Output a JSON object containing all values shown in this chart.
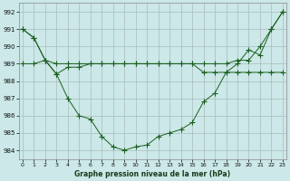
{
  "title": "Graphe pression niveau de la mer (hPa)",
  "background_color": "#cce8e8",
  "grid_color": "#aabbbb",
  "line_color": "#1a6020",
  "ylim": [
    983.5,
    992.5
  ],
  "yticks": [
    984,
    985,
    986,
    987,
    988,
    989,
    990,
    991,
    992
  ],
  "xlim": [
    -0.3,
    23.3
  ],
  "xticks": [
    0,
    1,
    2,
    3,
    4,
    5,
    6,
    7,
    8,
    9,
    10,
    11,
    12,
    13,
    14,
    15,
    16,
    17,
    18,
    19,
    20,
    21,
    22,
    23
  ],
  "s1_y": [
    991.0,
    990.5,
    989.2,
    989.0,
    989.0,
    989.0,
    989.0,
    989.0,
    989.0,
    989.0,
    989.0,
    989.0,
    989.0,
    989.0,
    989.0,
    989.0,
    989.0,
    989.0,
    989.0,
    989.2,
    989.2,
    990.0,
    991.0,
    992.0
  ],
  "s2_y": [
    991.0,
    990.5,
    989.2,
    988.4,
    987.0,
    986.0,
    985.8,
    984.8,
    984.2,
    984.0,
    984.2,
    984.3,
    984.8,
    985.0,
    985.2,
    985.6,
    986.8,
    987.3,
    988.5,
    989.0,
    989.8,
    989.5,
    991.0,
    992.0
  ],
  "s3_y": [
    989.0,
    989.0,
    989.2,
    988.4,
    988.8,
    988.8,
    989.0,
    989.0,
    989.0,
    989.0,
    989.0,
    989.0,
    989.0,
    989.0,
    989.0,
    989.0,
    988.5,
    988.5,
    988.5,
    988.5,
    988.5,
    988.5,
    988.5,
    988.5
  ]
}
